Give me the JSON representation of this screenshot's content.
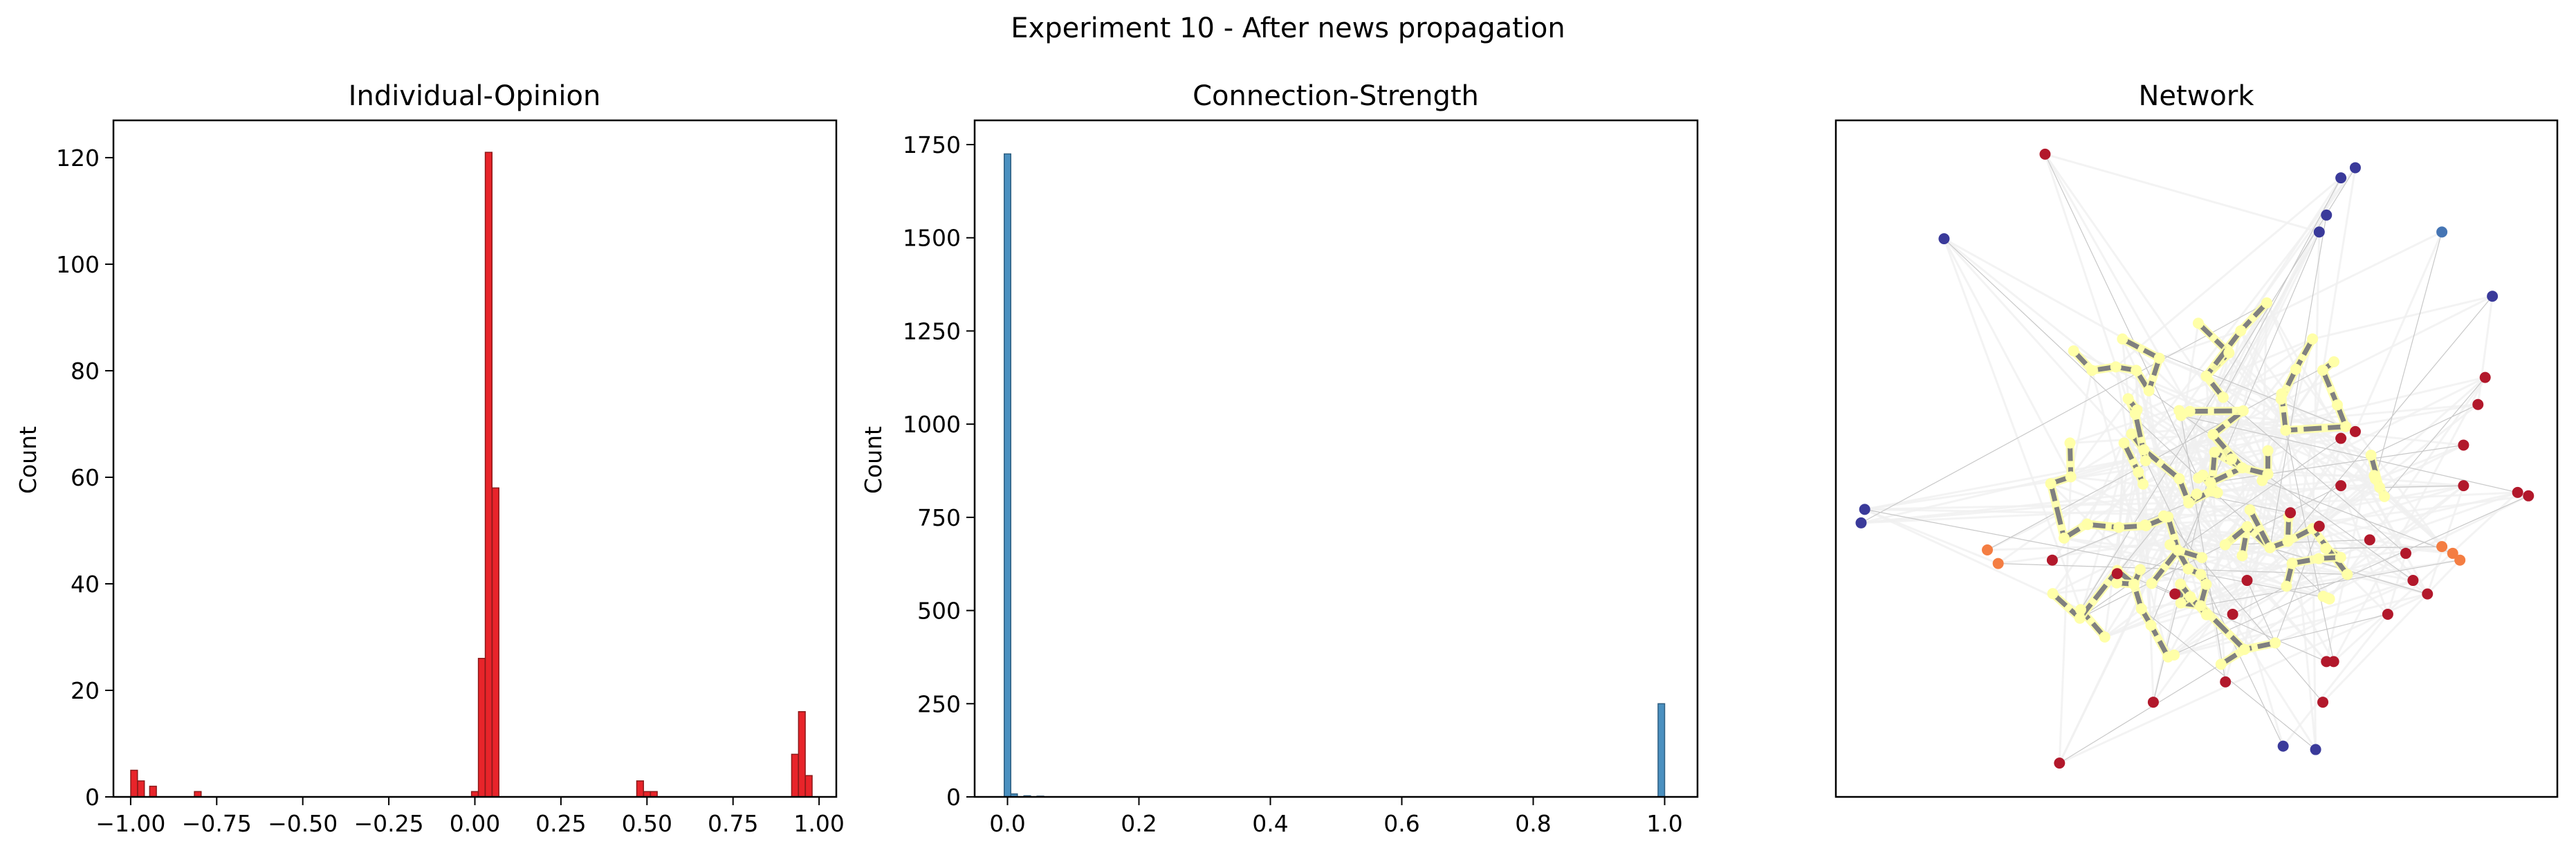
{
  "figure": {
    "suptitle": "Experiment 10 - After news propagation"
  },
  "chart_data": [
    {
      "type": "bar",
      "title": "Individual-Opinion",
      "xlabel": "",
      "ylabel": "Count",
      "color": "#e8242a",
      "edgecolor": "#8b1a1a",
      "xlim": [
        -1.05,
        1.05
      ],
      "ylim": [
        0,
        127
      ],
      "xticks": [
        -1.0,
        -0.75,
        -0.5,
        -0.25,
        0.0,
        0.25,
        0.5,
        0.75,
        1.0
      ],
      "xtick_labels": [
        "−1.00",
        "−0.75",
        "−0.50",
        "−0.25",
        "0.00",
        "0.25",
        "0.50",
        "0.75",
        "1.00"
      ],
      "yticks": [
        0,
        20,
        40,
        60,
        80,
        100,
        120
      ],
      "ytick_labels": [
        "0",
        "20",
        "40",
        "60",
        "80",
        "100",
        "120"
      ],
      "bin_width": 0.0195,
      "bins": [
        {
          "x": -0.99,
          "count": 5
        },
        {
          "x": -0.97,
          "count": 3
        },
        {
          "x": -0.935,
          "count": 2
        },
        {
          "x": -0.805,
          "count": 1
        },
        {
          "x": 0.0,
          "count": 1
        },
        {
          "x": 0.02,
          "count": 26
        },
        {
          "x": 0.04,
          "count": 121
        },
        {
          "x": 0.06,
          "count": 58
        },
        {
          "x": 0.48,
          "count": 3
        },
        {
          "x": 0.5,
          "count": 1
        },
        {
          "x": 0.52,
          "count": 1
        },
        {
          "x": 0.93,
          "count": 8
        },
        {
          "x": 0.95,
          "count": 16
        },
        {
          "x": 0.97,
          "count": 4
        }
      ]
    },
    {
      "type": "bar",
      "title": "Connection-Strength",
      "xlabel": "",
      "ylabel": "Count",
      "color": "#4a90c0",
      "edgecolor": "#2e5e80",
      "xlim": [
        -0.05,
        1.05
      ],
      "ylim": [
        0,
        1815
      ],
      "xticks": [
        0.0,
        0.2,
        0.4,
        0.6,
        0.8,
        1.0
      ],
      "xtick_labels": [
        "0.0",
        "0.2",
        "0.4",
        "0.6",
        "0.8",
        "1.0"
      ],
      "yticks": [
        0,
        250,
        500,
        750,
        1000,
        1250,
        1500,
        1750
      ],
      "ytick_labels": [
        "0",
        "250",
        "500",
        "750",
        "1000",
        "1250",
        "1500",
        "1750"
      ],
      "bin_width": 0.01,
      "bins": [
        {
          "x": 0.0,
          "count": 1725
        },
        {
          "x": 0.01,
          "count": 8
        },
        {
          "x": 0.03,
          "count": 3
        },
        {
          "x": 0.05,
          "count": 2
        },
        {
          "x": 0.995,
          "count": 250
        }
      ]
    },
    {
      "type": "scatter",
      "title": "Network",
      "xlim": [
        0,
        1
      ],
      "ylim": [
        0,
        1
      ],
      "axes_visible": false,
      "highlight_node_color": "#ffffa8",
      "highlight_edge_color": "#808080",
      "background_edge_color": "#f0f0f0",
      "core_center": [
        0.5,
        0.47
      ],
      "core_nodes": 110,
      "outer_nodes": [
        {
          "x": 0.29,
          "y": 0.95,
          "color": "#b2182b"
        },
        {
          "x": 0.15,
          "y": 0.825,
          "color": "#3a3a9a"
        },
        {
          "x": 0.72,
          "y": 0.93,
          "color": "#3a3a9a"
        },
        {
          "x": 0.7,
          "y": 0.915,
          "color": "#3a3a9a"
        },
        {
          "x": 0.68,
          "y": 0.86,
          "color": "#3a3a9a"
        },
        {
          "x": 0.67,
          "y": 0.835,
          "color": "#3a3a9a"
        },
        {
          "x": 0.84,
          "y": 0.835,
          "color": "#4575b4"
        },
        {
          "x": 0.91,
          "y": 0.74,
          "color": "#3a3a9a"
        },
        {
          "x": 0.9,
          "y": 0.62,
          "color": "#b2182b"
        },
        {
          "x": 0.89,
          "y": 0.58,
          "color": "#b2182b"
        },
        {
          "x": 0.72,
          "y": 0.54,
          "color": "#b2182b"
        },
        {
          "x": 0.7,
          "y": 0.53,
          "color": "#b2182b"
        },
        {
          "x": 0.87,
          "y": 0.52,
          "color": "#b2182b"
        },
        {
          "x": 0.945,
          "y": 0.45,
          "color": "#b2182b"
        },
        {
          "x": 0.96,
          "y": 0.445,
          "color": "#b2182b"
        },
        {
          "x": 0.87,
          "y": 0.46,
          "color": "#b2182b"
        },
        {
          "x": 0.7,
          "y": 0.46,
          "color": "#b2182b"
        },
        {
          "x": 0.63,
          "y": 0.42,
          "color": "#b2182b"
        },
        {
          "x": 0.67,
          "y": 0.4,
          "color": "#b2182b"
        },
        {
          "x": 0.57,
          "y": 0.32,
          "color": "#b2182b"
        },
        {
          "x": 0.74,
          "y": 0.38,
          "color": "#b2182b"
        },
        {
          "x": 0.79,
          "y": 0.36,
          "color": "#b2182b"
        },
        {
          "x": 0.8,
          "y": 0.32,
          "color": "#b2182b"
        },
        {
          "x": 0.82,
          "y": 0.3,
          "color": "#b2182b"
        },
        {
          "x": 0.47,
          "y": 0.3,
          "color": "#b2182b"
        },
        {
          "x": 0.39,
          "y": 0.33,
          "color": "#b2182b"
        },
        {
          "x": 0.3,
          "y": 0.35,
          "color": "#b2182b"
        },
        {
          "x": 0.55,
          "y": 0.27,
          "color": "#b2182b"
        },
        {
          "x": 0.765,
          "y": 0.27,
          "color": "#b2182b"
        },
        {
          "x": 0.68,
          "y": 0.2,
          "color": "#b2182b"
        },
        {
          "x": 0.69,
          "y": 0.2,
          "color": "#b2182b"
        },
        {
          "x": 0.54,
          "y": 0.17,
          "color": "#b2182b"
        },
        {
          "x": 0.44,
          "y": 0.14,
          "color": "#b2182b"
        },
        {
          "x": 0.675,
          "y": 0.14,
          "color": "#b2182b"
        },
        {
          "x": 0.31,
          "y": 0.05,
          "color": "#b2182b"
        },
        {
          "x": 0.62,
          "y": 0.075,
          "color": "#3a3a9a"
        },
        {
          "x": 0.665,
          "y": 0.07,
          "color": "#3a3a9a"
        },
        {
          "x": 0.04,
          "y": 0.425,
          "color": "#3a3a9a"
        },
        {
          "x": 0.035,
          "y": 0.405,
          "color": "#3a3a9a"
        },
        {
          "x": 0.21,
          "y": 0.365,
          "color": "#f47d42"
        },
        {
          "x": 0.225,
          "y": 0.345,
          "color": "#f47d42"
        },
        {
          "x": 0.84,
          "y": 0.37,
          "color": "#f47d42"
        },
        {
          "x": 0.855,
          "y": 0.36,
          "color": "#f47d42"
        },
        {
          "x": 0.865,
          "y": 0.35,
          "color": "#f47d42"
        }
      ]
    }
  ]
}
